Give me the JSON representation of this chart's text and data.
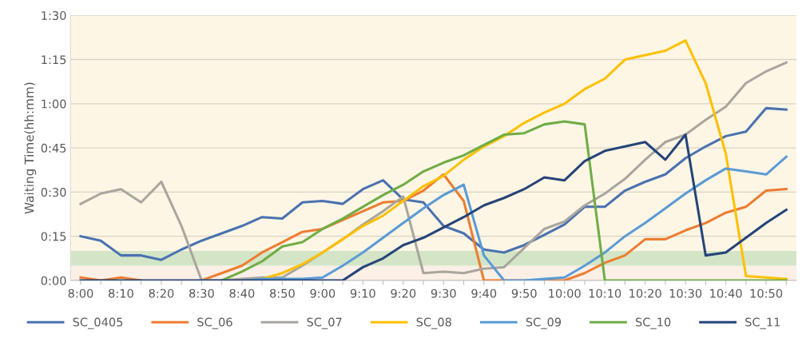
{
  "chart_data": {
    "type": "line",
    "ylabel": "Waiting Time(hh:mm)",
    "categories": [
      "8:00",
      null,
      "8:10",
      null,
      "8:20",
      null,
      "8:30",
      null,
      "8:40",
      null,
      "8:50",
      null,
      "9:00",
      null,
      "9:10",
      null,
      "9:20",
      null,
      "9:30",
      null,
      "9:40",
      null,
      "9:50",
      null,
      "10:00",
      null,
      "10:10",
      null,
      "10:20",
      null,
      "10:30",
      null,
      "10:40",
      null,
      "10:50",
      null
    ],
    "series": [
      {
        "name": "SC_0405",
        "color": "#4a72b0",
        "values": [
          15,
          13.5,
          8.5,
          8.5,
          7,
          10.5,
          13.5,
          16,
          18.5,
          21.5,
          21,
          26.5,
          27,
          26,
          31,
          34,
          27.5,
          26.5,
          18.5,
          16,
          10.5,
          9.5,
          12,
          15.5,
          19,
          25,
          25,
          30.5,
          33.5,
          36,
          41.5,
          45.5,
          49,
          50.5,
          58.5,
          58
        ]
      },
      {
        "name": "SC_06",
        "color": "#ed7d31",
        "values": [
          1,
          0,
          1,
          0,
          null,
          null,
          0,
          2.5,
          5,
          9.5,
          13,
          16.5,
          17.5,
          20.5,
          23.5,
          26.5,
          27,
          30.5,
          36,
          27,
          0,
          0,
          0,
          0,
          0,
          2.5,
          6,
          8.5,
          14,
          14,
          17,
          19.5,
          23,
          25,
          30.5,
          31
        ]
      },
      {
        "name": "SC_07",
        "color": "#a9a69e",
        "values": [
          26,
          29.5,
          31,
          26.5,
          33.5,
          18.5,
          0,
          0,
          0.5,
          1,
          1,
          5,
          9.5,
          14,
          19,
          23.5,
          28.5,
          2.5,
          3,
          2.5,
          4,
          4.5,
          11,
          17.5,
          20,
          25.5,
          29.5,
          34.5,
          41,
          47,
          49.5,
          54.5,
          59,
          67,
          71,
          74
        ]
      },
      {
        "name": "SC_08",
        "color": "#ffc000",
        "values": [
          null,
          null,
          null,
          null,
          null,
          null,
          null,
          null,
          0,
          0.5,
          2.5,
          5.5,
          9.5,
          14,
          18.5,
          22,
          27,
          32,
          35.5,
          41,
          45.5,
          49,
          53.5,
          57,
          60,
          65,
          68.5,
          75,
          76.5,
          78,
          81.5,
          67,
          43,
          1.5,
          1,
          0.5
        ]
      },
      {
        "name": "SC_09",
        "color": "#5b9bd5",
        "values": [
          null,
          null,
          null,
          null,
          null,
          null,
          null,
          null,
          0,
          0.5,
          0.5,
          0.5,
          1,
          5,
          9.5,
          14.5,
          19.5,
          24.5,
          29,
          32.5,
          8.5,
          0,
          0,
          0.5,
          1,
          5,
          9.5,
          15,
          19.5,
          24.5,
          29.5,
          34,
          38,
          37,
          36,
          42
        ]
      },
      {
        "name": "SC_10",
        "color": "#70ad47",
        "values": [
          null,
          null,
          null,
          null,
          null,
          null,
          null,
          0,
          3,
          6.5,
          11.5,
          13,
          17.5,
          21,
          25,
          29,
          32.5,
          37,
          40,
          42.5,
          46,
          49.5,
          50,
          53,
          54,
          53,
          0,
          0,
          0,
          0,
          0,
          0,
          0,
          0,
          0,
          0
        ]
      },
      {
        "name": "SC_11",
        "color": "#264478",
        "values": [
          0,
          0,
          0,
          0,
          0,
          0,
          0,
          0,
          0,
          0,
          0,
          0,
          0,
          0,
          4.5,
          7.5,
          12,
          14.5,
          18,
          21.5,
          25.5,
          28,
          31,
          35,
          34,
          40.5,
          44,
          45.5,
          47,
          41,
          49.5,
          8.5,
          9.5,
          14.5,
          19.5,
          24
        ]
      }
    ],
    "ylim": [
      0,
      90
    ],
    "yticks": [
      {
        "value": 0,
        "label": "0:00"
      },
      {
        "value": 15,
        "label": "0:15"
      },
      {
        "value": 30,
        "label": "0:30"
      },
      {
        "value": 45,
        "label": "0:45"
      },
      {
        "value": 60,
        "label": "1:00"
      },
      {
        "value": 75,
        "label": "1:15"
      },
      {
        "value": 90,
        "label": "1:30"
      }
    ],
    "bands": [
      {
        "axis": "y",
        "from": 0,
        "to": 5,
        "color": "#fbefe6"
      },
      {
        "axis": "y",
        "from": 5,
        "to": 10,
        "color": "#d3e5c6"
      },
      {
        "axis": "y",
        "from": 10,
        "to": 90,
        "color": "#fef6e5"
      }
    ],
    "grid": "y",
    "legend": "bottom",
    "marker": "none",
    "line_style": "solid"
  }
}
